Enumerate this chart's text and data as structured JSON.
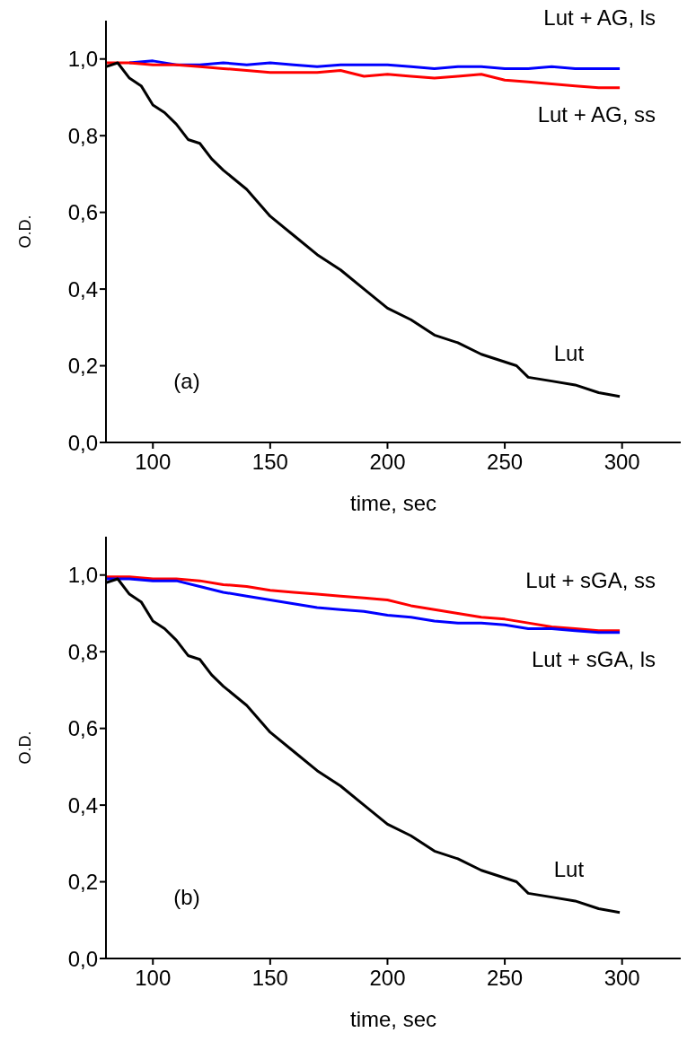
{
  "chart_data": [
    {
      "type": "line",
      "xlabel": "time, sec",
      "ylabel": "O.D.",
      "annotations": [
        "(a)"
      ],
      "xlim": [
        80,
        325
      ],
      "xticks": [
        100,
        150,
        200,
        250,
        300
      ],
      "ylim": [
        0,
        1.1
      ],
      "yticks": [
        {
          "value": 0,
          "label": "0,0"
        },
        {
          "value": 0.2,
          "label": "0,2"
        },
        {
          "value": 0.4,
          "label": "0,4"
        },
        {
          "value": 0.6,
          "label": "0,6"
        },
        {
          "value": 0.8,
          "label": "0,8"
        },
        {
          "value": 1,
          "label": "1,0"
        }
      ],
      "grid": false,
      "legend": false,
      "marker": "none",
      "line_style": "solid",
      "series": [
        {
          "name": "Lut + AG, ls",
          "color": "#0000ff",
          "x": [
            90,
            100,
            110,
            120,
            130,
            140,
            150,
            160,
            170,
            180,
            190,
            200,
            210,
            220,
            230,
            240,
            250,
            260,
            270,
            280,
            290,
            299
          ],
          "values": [
            0.99,
            0.995,
            0.985,
            0.985,
            0.99,
            0.985,
            0.99,
            0.985,
            0.98,
            0.985,
            0.985,
            0.985,
            0.98,
            0.975,
            0.98,
            0.98,
            0.975,
            0.975,
            0.98,
            0.975,
            0.975,
            0.975
          ]
        },
        {
          "name": "Lut + AG, ss",
          "color": "#ff0000",
          "x": [
            80,
            90,
            100,
            110,
            120,
            130,
            140,
            150,
            160,
            170,
            180,
            190,
            200,
            210,
            220,
            230,
            240,
            250,
            260,
            270,
            280,
            290,
            299
          ],
          "values": [
            0.99,
            0.99,
            0.985,
            0.985,
            0.98,
            0.975,
            0.97,
            0.965,
            0.965,
            0.965,
            0.97,
            0.955,
            0.96,
            0.955,
            0.95,
            0.955,
            0.96,
            0.945,
            0.94,
            0.935,
            0.93,
            0.925,
            0.925
          ]
        },
        {
          "name": "Lut",
          "color": "#000000",
          "x": [
            80,
            85,
            90,
            95,
            100,
            105,
            110,
            115,
            120,
            125,
            130,
            140,
            150,
            160,
            170,
            180,
            190,
            200,
            210,
            220,
            230,
            240,
            250,
            255,
            260,
            270,
            280,
            290,
            299
          ],
          "values": [
            0.98,
            0.99,
            0.95,
            0.93,
            0.88,
            0.86,
            0.83,
            0.79,
            0.78,
            0.74,
            0.71,
            0.66,
            0.59,
            0.54,
            0.49,
            0.45,
            0.4,
            0.35,
            0.32,
            0.28,
            0.26,
            0.23,
            0.21,
            0.2,
            0.17,
            0.16,
            0.15,
            0.13,
            0.12
          ]
        }
      ]
    },
    {
      "type": "line",
      "xlabel": "time, sec",
      "ylabel": "O.D.",
      "annotations": [
        "(b)"
      ],
      "xlim": [
        80,
        325
      ],
      "xticks": [
        100,
        150,
        200,
        250,
        300
      ],
      "ylim": [
        0,
        1.1
      ],
      "yticks": [
        {
          "value": 0,
          "label": "0,0"
        },
        {
          "value": 0.2,
          "label": "0,2"
        },
        {
          "value": 0.4,
          "label": "0,4"
        },
        {
          "value": 0.6,
          "label": "0,6"
        },
        {
          "value": 0.8,
          "label": "0,8"
        },
        {
          "value": 1,
          "label": "1,0"
        }
      ],
      "grid": false,
      "legend": false,
      "marker": "none",
      "line_style": "solid",
      "series": [
        {
          "name": "Lut + sGA, ss",
          "color": "#ff0000",
          "x": [
            80,
            90,
            100,
            110,
            120,
            130,
            140,
            150,
            160,
            170,
            180,
            190,
            200,
            210,
            220,
            230,
            240,
            250,
            260,
            270,
            280,
            290,
            299
          ],
          "values": [
            0.995,
            0.995,
            0.99,
            0.99,
            0.985,
            0.975,
            0.97,
            0.96,
            0.955,
            0.95,
            0.945,
            0.94,
            0.935,
            0.92,
            0.91,
            0.9,
            0.89,
            0.885,
            0.875,
            0.865,
            0.86,
            0.855,
            0.855
          ]
        },
        {
          "name": "Lut + sGA, ls",
          "color": "#0000ff",
          "x": [
            80,
            90,
            100,
            110,
            120,
            130,
            140,
            150,
            160,
            170,
            180,
            190,
            200,
            210,
            220,
            230,
            240,
            250,
            260,
            270,
            280,
            290,
            299
          ],
          "values": [
            0.99,
            0.99,
            0.985,
            0.985,
            0.97,
            0.955,
            0.945,
            0.935,
            0.925,
            0.915,
            0.91,
            0.905,
            0.895,
            0.89,
            0.88,
            0.875,
            0.875,
            0.87,
            0.86,
            0.86,
            0.855,
            0.85,
            0.85
          ]
        },
        {
          "name": "Lut",
          "color": "#000000",
          "x": [
            80,
            85,
            90,
            95,
            100,
            105,
            110,
            115,
            120,
            125,
            130,
            140,
            150,
            160,
            170,
            180,
            190,
            200,
            210,
            220,
            230,
            240,
            250,
            255,
            260,
            270,
            280,
            290,
            299
          ],
          "values": [
            0.98,
            0.99,
            0.95,
            0.93,
            0.88,
            0.86,
            0.83,
            0.79,
            0.78,
            0.74,
            0.71,
            0.66,
            0.59,
            0.54,
            0.49,
            0.45,
            0.4,
            0.35,
            0.32,
            0.28,
            0.26,
            0.23,
            0.21,
            0.2,
            0.17,
            0.16,
            0.15,
            0.13,
            0.12
          ]
        }
      ]
    }
  ]
}
